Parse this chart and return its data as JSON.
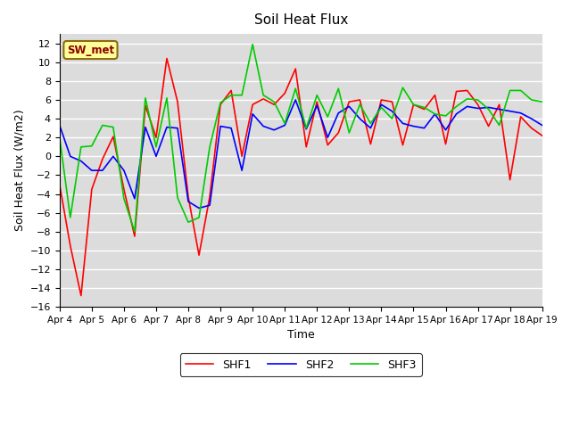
{
  "title": "Soil Heat Flux",
  "ylabel": "Soil Heat Flux (W/m2)",
  "xlabel": "Time",
  "ylim": [
    -16,
    13
  ],
  "yticks": [
    -16,
    -14,
    -12,
    -10,
    -8,
    -6,
    -4,
    -2,
    0,
    2,
    4,
    6,
    8,
    10,
    12
  ],
  "annotation": "SW_met",
  "annotation_color": "#8B0000",
  "annotation_bg": "#FFFF99",
  "plot_bg": "#DCDCDC",
  "fig_bg": "#ffffff",
  "legend_labels": [
    "SHF1",
    "SHF2",
    "SHF3"
  ],
  "colors": [
    "#FF0000",
    "#0000FF",
    "#00CC00"
  ],
  "xtick_labels": [
    "Apr 4",
    "Apr 5",
    "Apr 6",
    "Apr 7",
    "Apr 8",
    "Apr 9",
    "Apr 10",
    "Apr 11",
    "Apr 12",
    "Apr 13",
    "Apr 14",
    "Apr 15",
    "Apr 16",
    "Apr 17",
    "Apr 18",
    "Apr 19"
  ],
  "shf1": [
    -3.0,
    -9.5,
    -14.8,
    -3.5,
    -0.3,
    2.1,
    -3.5,
    -8.5,
    5.4,
    2.0,
    10.4,
    5.8,
    -4.3,
    -10.5,
    -4.3,
    5.5,
    7.0,
    0.0,
    5.5,
    6.1,
    5.5,
    6.7,
    9.3,
    1.0,
    5.8,
    1.2,
    2.5,
    5.8,
    6.0,
    1.3,
    6.0,
    5.8,
    1.2,
    5.5,
    5.0,
    6.5,
    1.3,
    6.9,
    7.0,
    5.5,
    3.2,
    5.5,
    -2.5,
    4.2,
    3.0,
    2.2
  ],
  "shf2": [
    3.3,
    0.0,
    -0.5,
    -1.5,
    -1.5,
    0.0,
    -1.5,
    -4.5,
    3.1,
    0.0,
    3.1,
    3.0,
    -4.8,
    -5.5,
    -5.2,
    3.2,
    3.0,
    -1.5,
    4.5,
    3.2,
    2.8,
    3.3,
    6.0,
    2.9,
    5.4,
    2.0,
    4.6,
    5.3,
    4.0,
    3.0,
    5.5,
    4.8,
    3.5,
    3.2,
    3.0,
    4.5,
    2.8,
    4.5,
    5.3,
    5.1,
    5.2,
    5.0,
    4.8,
    4.6,
    4.0,
    3.3
  ],
  "shf3": [
    2.0,
    -6.5,
    1.0,
    1.1,
    3.3,
    3.1,
    -4.5,
    -8.0,
    6.2,
    1.0,
    6.2,
    -4.4,
    -7.0,
    -6.5,
    1.0,
    5.7,
    6.5,
    6.5,
    11.9,
    6.5,
    5.8,
    3.5,
    7.2,
    3.0,
    6.5,
    4.2,
    7.2,
    2.5,
    5.5,
    3.5,
    5.2,
    4.0,
    7.3,
    5.5,
    5.2,
    4.5,
    4.3,
    5.3,
    6.1,
    6.0,
    5.0,
    3.3,
    7.0,
    7.0,
    6.0,
    5.8
  ]
}
